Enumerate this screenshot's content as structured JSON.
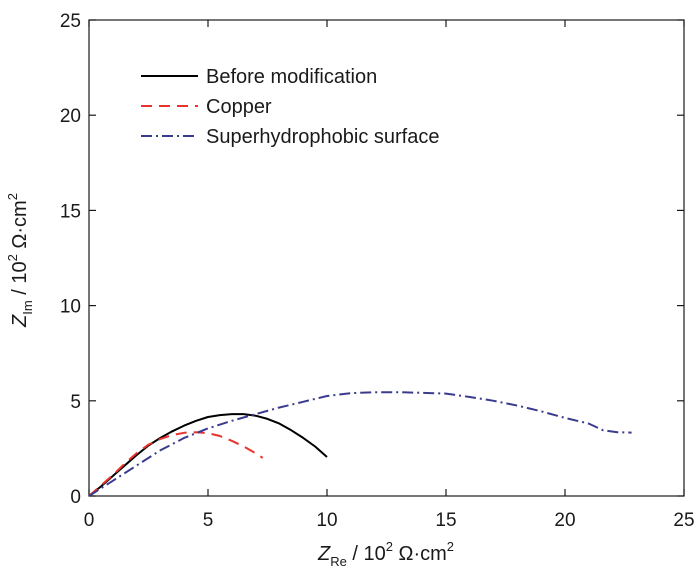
{
  "chart_data": {
    "type": "line",
    "x_axis": {
      "symbol": "Z",
      "subscript": "Re",
      "unit_text": " / 10",
      "unit_exp": "2",
      "unit_tail": " Ω·cm",
      "unit_tail_exp": "2",
      "range": [
        0,
        25
      ],
      "ticks": [
        "0",
        "5",
        "10",
        "15",
        "20",
        "25"
      ]
    },
    "y_axis": {
      "symbol": "Z",
      "subscript": "Im",
      "unit_text": " / 10",
      "unit_exp": "2",
      "unit_tail": " Ω·cm",
      "unit_tail_exp": "2",
      "range": [
        0,
        25
      ],
      "ticks": [
        "0",
        "5",
        "10",
        "15",
        "20",
        "25"
      ]
    },
    "legend_position": "top-left",
    "grid": false,
    "series": [
      {
        "name": "Before modification",
        "color": "#000000",
        "dash": "solid",
        "points": [
          [
            0,
            0
          ],
          [
            0.5,
            0.5
          ],
          [
            1,
            1.05
          ],
          [
            1.5,
            1.6
          ],
          [
            2,
            2.15
          ],
          [
            2.5,
            2.65
          ],
          [
            3,
            3.05
          ],
          [
            3.5,
            3.4
          ],
          [
            4,
            3.7
          ],
          [
            4.5,
            3.95
          ],
          [
            5,
            4.15
          ],
          [
            5.5,
            4.25
          ],
          [
            6,
            4.3
          ],
          [
            6.5,
            4.3
          ],
          [
            7,
            4.22
          ],
          [
            7.5,
            4.05
          ],
          [
            8,
            3.8
          ],
          [
            8.5,
            3.45
          ],
          [
            9,
            3.05
          ],
          [
            9.5,
            2.6
          ],
          [
            10,
            2.05
          ]
        ]
      },
      {
        "name": "Copper",
        "color": "#e8342c",
        "dash": "dash",
        "points": [
          [
            0,
            0
          ],
          [
            0.5,
            0.55
          ],
          [
            1,
            1.1
          ],
          [
            1.5,
            1.7
          ],
          [
            2,
            2.25
          ],
          [
            2.5,
            2.7
          ],
          [
            3,
            3.0
          ],
          [
            3.5,
            3.2
          ],
          [
            4,
            3.32
          ],
          [
            4.5,
            3.35
          ],
          [
            5,
            3.3
          ],
          [
            5.5,
            3.15
          ],
          [
            6,
            2.9
          ],
          [
            6.5,
            2.6
          ],
          [
            7,
            2.25
          ],
          [
            7.3,
            2.0
          ]
        ]
      },
      {
        "name": "Superhydrophobic surface",
        "color": "#3a3b8f",
        "dash": "dashdot",
        "points": [
          [
            0,
            0
          ],
          [
            1,
            0.8
          ],
          [
            2,
            1.6
          ],
          [
            3,
            2.4
          ],
          [
            4,
            3.05
          ],
          [
            5,
            3.55
          ],
          [
            6,
            3.95
          ],
          [
            7,
            4.3
          ],
          [
            8,
            4.65
          ],
          [
            9,
            4.95
          ],
          [
            10,
            5.25
          ],
          [
            11,
            5.4
          ],
          [
            12,
            5.45
          ],
          [
            13,
            5.45
          ],
          [
            14,
            5.42
          ],
          [
            15,
            5.38
          ],
          [
            16,
            5.2
          ],
          [
            17,
            5.0
          ],
          [
            18,
            4.75
          ],
          [
            19,
            4.45
          ],
          [
            20,
            4.1
          ],
          [
            21,
            3.8
          ],
          [
            21.6,
            3.45
          ],
          [
            22.2,
            3.35
          ],
          [
            22.8,
            3.33
          ]
        ]
      }
    ]
  }
}
